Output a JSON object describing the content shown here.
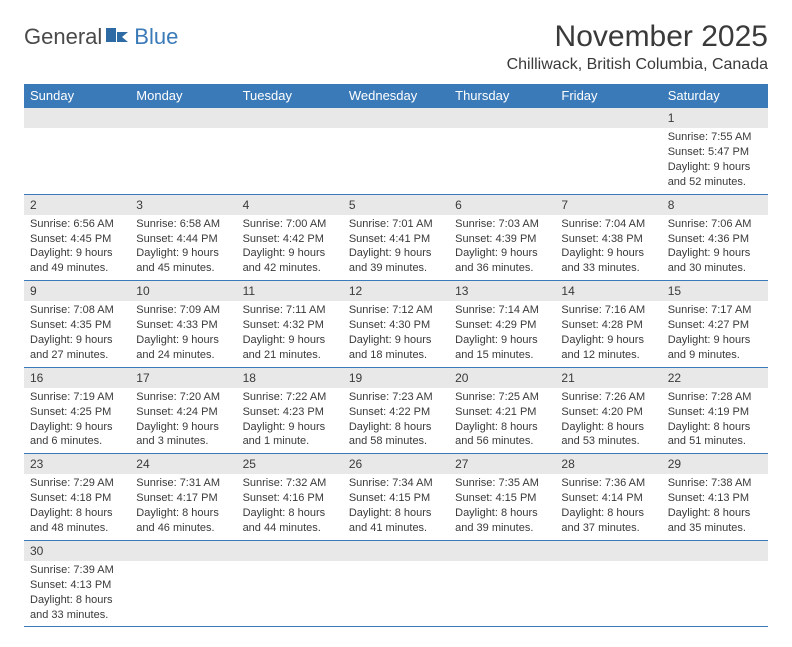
{
  "brand": {
    "part1": "General",
    "part2": "Blue"
  },
  "title": "November 2025",
  "location": "Chilliwack, British Columbia, Canada",
  "colors": {
    "header_bg": "#3a7ab8",
    "header_text": "#ffffff",
    "daynum_bg": "#e8e8e8",
    "text": "#3a3a3a",
    "row_border": "#3a7ab8",
    "page_bg": "#ffffff"
  },
  "fonts": {
    "title_size": 30,
    "location_size": 16,
    "header_size": 13,
    "body_size": 11
  },
  "weekdays": [
    "Sunday",
    "Monday",
    "Tuesday",
    "Wednesday",
    "Thursday",
    "Friday",
    "Saturday"
  ],
  "layout": {
    "columns": 7,
    "rows": 6,
    "first_weekday_index": 6,
    "days_in_month": 30
  },
  "days": [
    {
      "n": 1,
      "sunrise": "7:55 AM",
      "sunset": "5:47 PM",
      "daylight": "9 hours and 52 minutes."
    },
    {
      "n": 2,
      "sunrise": "6:56 AM",
      "sunset": "4:45 PM",
      "daylight": "9 hours and 49 minutes."
    },
    {
      "n": 3,
      "sunrise": "6:58 AM",
      "sunset": "4:44 PM",
      "daylight": "9 hours and 45 minutes."
    },
    {
      "n": 4,
      "sunrise": "7:00 AM",
      "sunset": "4:42 PM",
      "daylight": "9 hours and 42 minutes."
    },
    {
      "n": 5,
      "sunrise": "7:01 AM",
      "sunset": "4:41 PM",
      "daylight": "9 hours and 39 minutes."
    },
    {
      "n": 6,
      "sunrise": "7:03 AM",
      "sunset": "4:39 PM",
      "daylight": "9 hours and 36 minutes."
    },
    {
      "n": 7,
      "sunrise": "7:04 AM",
      "sunset": "4:38 PM",
      "daylight": "9 hours and 33 minutes."
    },
    {
      "n": 8,
      "sunrise": "7:06 AM",
      "sunset": "4:36 PM",
      "daylight": "9 hours and 30 minutes."
    },
    {
      "n": 9,
      "sunrise": "7:08 AM",
      "sunset": "4:35 PM",
      "daylight": "9 hours and 27 minutes."
    },
    {
      "n": 10,
      "sunrise": "7:09 AM",
      "sunset": "4:33 PM",
      "daylight": "9 hours and 24 minutes."
    },
    {
      "n": 11,
      "sunrise": "7:11 AM",
      "sunset": "4:32 PM",
      "daylight": "9 hours and 21 minutes."
    },
    {
      "n": 12,
      "sunrise": "7:12 AM",
      "sunset": "4:30 PM",
      "daylight": "9 hours and 18 minutes."
    },
    {
      "n": 13,
      "sunrise": "7:14 AM",
      "sunset": "4:29 PM",
      "daylight": "9 hours and 15 minutes."
    },
    {
      "n": 14,
      "sunrise": "7:16 AM",
      "sunset": "4:28 PM",
      "daylight": "9 hours and 12 minutes."
    },
    {
      "n": 15,
      "sunrise": "7:17 AM",
      "sunset": "4:27 PM",
      "daylight": "9 hours and 9 minutes."
    },
    {
      "n": 16,
      "sunrise": "7:19 AM",
      "sunset": "4:25 PM",
      "daylight": "9 hours and 6 minutes."
    },
    {
      "n": 17,
      "sunrise": "7:20 AM",
      "sunset": "4:24 PM",
      "daylight": "9 hours and 3 minutes."
    },
    {
      "n": 18,
      "sunrise": "7:22 AM",
      "sunset": "4:23 PM",
      "daylight": "9 hours and 1 minute."
    },
    {
      "n": 19,
      "sunrise": "7:23 AM",
      "sunset": "4:22 PM",
      "daylight": "8 hours and 58 minutes."
    },
    {
      "n": 20,
      "sunrise": "7:25 AM",
      "sunset": "4:21 PM",
      "daylight": "8 hours and 56 minutes."
    },
    {
      "n": 21,
      "sunrise": "7:26 AM",
      "sunset": "4:20 PM",
      "daylight": "8 hours and 53 minutes."
    },
    {
      "n": 22,
      "sunrise": "7:28 AM",
      "sunset": "4:19 PM",
      "daylight": "8 hours and 51 minutes."
    },
    {
      "n": 23,
      "sunrise": "7:29 AM",
      "sunset": "4:18 PM",
      "daylight": "8 hours and 48 minutes."
    },
    {
      "n": 24,
      "sunrise": "7:31 AM",
      "sunset": "4:17 PM",
      "daylight": "8 hours and 46 minutes."
    },
    {
      "n": 25,
      "sunrise": "7:32 AM",
      "sunset": "4:16 PM",
      "daylight": "8 hours and 44 minutes."
    },
    {
      "n": 26,
      "sunrise": "7:34 AM",
      "sunset": "4:15 PM",
      "daylight": "8 hours and 41 minutes."
    },
    {
      "n": 27,
      "sunrise": "7:35 AM",
      "sunset": "4:15 PM",
      "daylight": "8 hours and 39 minutes."
    },
    {
      "n": 28,
      "sunrise": "7:36 AM",
      "sunset": "4:14 PM",
      "daylight": "8 hours and 37 minutes."
    },
    {
      "n": 29,
      "sunrise": "7:38 AM",
      "sunset": "4:13 PM",
      "daylight": "8 hours and 35 minutes."
    },
    {
      "n": 30,
      "sunrise": "7:39 AM",
      "sunset": "4:13 PM",
      "daylight": "8 hours and 33 minutes."
    }
  ],
  "labels": {
    "sunrise": "Sunrise: ",
    "sunset": "Sunset: ",
    "daylight": "Daylight: "
  }
}
